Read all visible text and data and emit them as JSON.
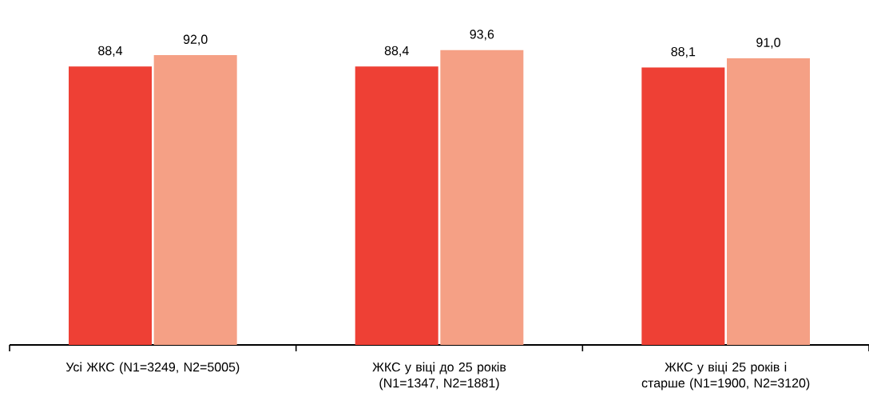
{
  "chart_data": {
    "type": "bar",
    "categories": [
      "Усі ЖКС (N1=3249, N2=5005)",
      "ЖКС у віці до 25 років (N1=1347, N2=1881)",
      "ЖКС у віці 25 років і старше (N1=1900, N2=3120)"
    ],
    "series": [
      {
        "color": "#ee4035",
        "values": [
          88.4,
          88.4,
          88.1
        ],
        "value_labels": [
          "88,4",
          "88,4",
          "88,1"
        ]
      },
      {
        "color": "#f5a085",
        "values": [
          92.0,
          93.6,
          91.0
        ],
        "value_labels": [
          "92,0",
          "93,6",
          "91,0"
        ]
      }
    ]
  }
}
